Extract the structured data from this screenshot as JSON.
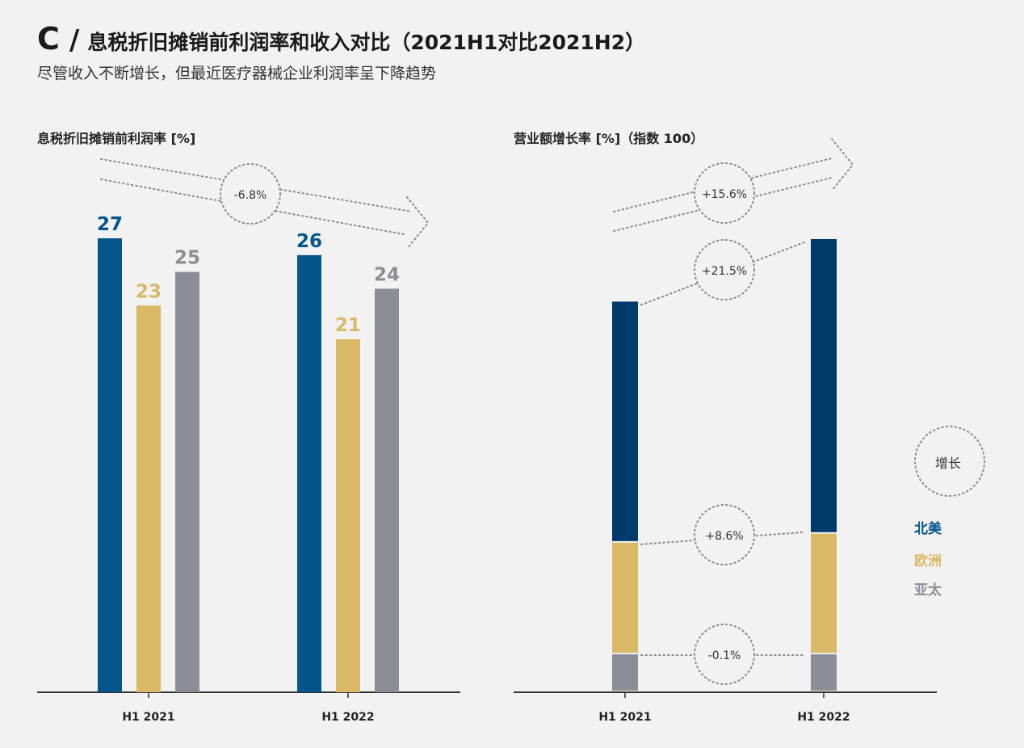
{
  "header": {
    "letter": "C",
    "slash": "/",
    "title": "息税折旧摊销前利润率和收入对比（2021H1对比2021H2）",
    "subtitle": "尽管收入不断增长，但最近医疗器械企业利润率呈下降趋势"
  },
  "colors": {
    "north_america": "#03558c",
    "europe": "#d9b966",
    "apac": "#8a8e96",
    "north_america_dark": "#003a6b",
    "axis": "#333333",
    "dotted": "#8a8a8a"
  },
  "chart_data": [
    {
      "type": "bar",
      "title": "息税折旧摊销前利润率 [%]",
      "categories": [
        "H1 2021",
        "H1 2022"
      ],
      "series": [
        {
          "name": "北美",
          "values": [
            27,
            26
          ]
        },
        {
          "name": "欧洲",
          "values": [
            23,
            21
          ]
        },
        {
          "name": "亚太",
          "values": [
            25,
            24
          ]
        }
      ],
      "ylim": [
        0,
        28
      ],
      "annotations": [
        {
          "label": "-6.8%",
          "type": "change-arrow",
          "direction": "down"
        }
      ]
    },
    {
      "type": "bar",
      "stacked": true,
      "title": "营业额增长率 [%]（指数 100）",
      "categories": [
        "H1 2021",
        "H1 2022"
      ],
      "series": [
        {
          "name": "北美",
          "values": [
            54,
            66
          ]
        },
        {
          "name": "欧洲",
          "values": [
            25,
            27
          ]
        },
        {
          "name": "亚太",
          "values": [
            8.5,
            8.5
          ]
        }
      ],
      "ylim": [
        0,
        102
      ],
      "annotations": [
        {
          "label": "+15.6%",
          "target": "total",
          "type": "change-arrow",
          "direction": "up"
        },
        {
          "label": "+21.5%",
          "target": "北美"
        },
        {
          "label": "+8.6%",
          "target": "欧洲"
        },
        {
          "label": "-0.1%",
          "target": "亚太"
        }
      ],
      "legend": {
        "title": "增长",
        "items": [
          "北美",
          "欧洲",
          "亚太"
        ],
        "position": "right"
      }
    }
  ]
}
